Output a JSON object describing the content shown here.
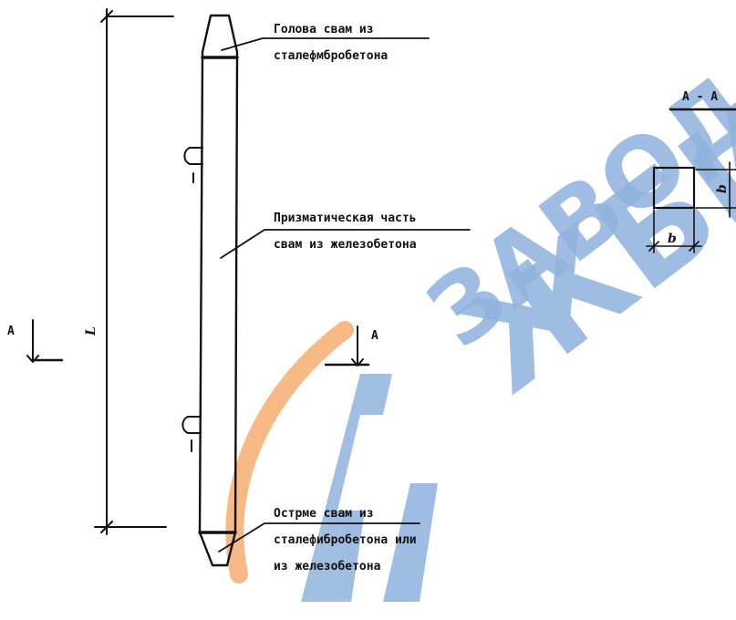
{
  "labels": {
    "head": [
      "Голова свам из",
      "сталефмбробетона"
    ],
    "prismatic": [
      "Призматическая часть",
      "свам из железобетона"
    ],
    "tip": [
      "Острме свам из",
      "сталефибробетона или",
      "из железобетона"
    ],
    "section_title": "А - А",
    "section_mark_left": "А",
    "section_mark_right": "А",
    "length_symbol": "L",
    "side_b_horizontal": "b",
    "side_b_vertical": "b"
  },
  "watermark": {
    "line1": "ЗАВОД",
    "line2": "ЖБИ",
    "colors": {
      "letters": "#8fb2dd",
      "arc": "#f6b27a"
    }
  }
}
